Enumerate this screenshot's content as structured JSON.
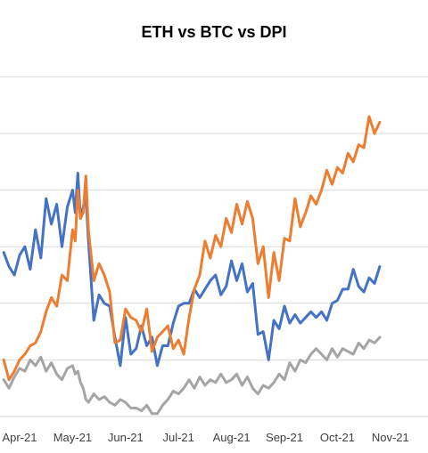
{
  "chart_data": {
    "type": "line",
    "title": "ETH vs BTC vs DPI",
    "xlabel": "",
    "ylabel": "",
    "x_ticks": [
      "Apr-21",
      "May-21",
      "Jun-21",
      "Jul-21",
      "Aug-21",
      "Sep-21",
      "Oct-21",
      "Nov-21"
    ],
    "ylim": [
      0,
      100
    ],
    "grid": true,
    "legend": "none",
    "series": [
      {
        "color": "#4472C4",
        "x": [
          -0.3,
          -0.2,
          -0.1,
          0.0,
          0.1,
          0.2,
          0.3,
          0.4,
          0.5,
          0.6,
          0.7,
          0.8,
          0.9,
          1.0,
          1.05,
          1.1,
          1.15,
          1.2,
          1.25,
          1.3,
          1.4,
          1.5,
          1.6,
          1.7,
          1.8,
          1.9,
          2.0,
          2.1,
          2.2,
          2.3,
          2.4,
          2.5,
          2.6,
          2.7,
          2.8,
          2.9,
          3.0,
          3.1,
          3.2,
          3.3,
          3.4,
          3.5,
          3.6,
          3.7,
          3.8,
          3.9,
          4.0,
          4.1,
          4.2,
          4.3,
          4.4,
          4.5,
          4.6,
          4.7,
          4.8,
          4.9,
          5.0,
          5.1,
          5.2,
          5.3,
          5.4,
          5.5,
          5.6,
          5.7,
          5.8,
          5.9,
          6.0,
          6.1,
          6.2,
          6.3,
          6.4,
          6.5,
          6.6,
          6.7,
          6.8
        ],
        "y": [
          58,
          53,
          50,
          57,
          60,
          52,
          66,
          56,
          77,
          68,
          75,
          60,
          74,
          80,
          72,
          86,
          70,
          74,
          78,
          62,
          34,
          43,
          40,
          39,
          28,
          18,
          35,
          22,
          24,
          32,
          25,
          28,
          18,
          25,
          25,
          33,
          39,
          40,
          40,
          45,
          42,
          45,
          48,
          50,
          43,
          46,
          55,
          48,
          54,
          44,
          47,
          29,
          30,
          20,
          34,
          31,
          39,
          33,
          36,
          33,
          35,
          37,
          35,
          37,
          34,
          40,
          41,
          45,
          45,
          52,
          46,
          44,
          49,
          47,
          53
        ]
      },
      {
        "color": "#ED7D31",
        "x": [
          -0.3,
          -0.2,
          -0.1,
          0.0,
          0.1,
          0.2,
          0.3,
          0.4,
          0.5,
          0.6,
          0.7,
          0.8,
          0.9,
          1.0,
          1.05,
          1.1,
          1.15,
          1.2,
          1.25,
          1.3,
          1.4,
          1.5,
          1.6,
          1.7,
          1.8,
          1.9,
          2.0,
          2.1,
          2.2,
          2.3,
          2.4,
          2.5,
          2.6,
          2.7,
          2.8,
          2.9,
          3.0,
          3.1,
          3.2,
          3.3,
          3.4,
          3.5,
          3.6,
          3.7,
          3.8,
          3.9,
          4.0,
          4.1,
          4.2,
          4.3,
          4.4,
          4.5,
          4.6,
          4.7,
          4.8,
          4.9,
          5.0,
          5.1,
          5.2,
          5.3,
          5.4,
          5.5,
          5.6,
          5.7,
          5.8,
          5.9,
          6.0,
          6.1,
          6.2,
          6.3,
          6.4,
          6.5,
          6.6,
          6.7,
          6.8
        ],
        "y": [
          20,
          13,
          16,
          20,
          22,
          25,
          26,
          30,
          37,
          42,
          39,
          50,
          48,
          66,
          62,
          80,
          70,
          72,
          85,
          66,
          48,
          54,
          50,
          44,
          26,
          27,
          38,
          35,
          34,
          30,
          38,
          23,
          28,
          30,
          32,
          24,
          27,
          22,
          35,
          45,
          50,
          62,
          56,
          64,
          60,
          70,
          65,
          75,
          68,
          76,
          70,
          54,
          60,
          42,
          58,
          48,
          63,
          62,
          77,
          67,
          72,
          78,
          75,
          80,
          87,
          82,
          88,
          86,
          93,
          90,
          96,
          95,
          106,
          100,
          104
        ]
      },
      {
        "color": "#A5A5A5",
        "x": [
          -0.3,
          -0.2,
          -0.1,
          0.0,
          0.1,
          0.2,
          0.3,
          0.4,
          0.5,
          0.6,
          0.7,
          0.8,
          0.9,
          1.0,
          1.05,
          1.1,
          1.15,
          1.2,
          1.25,
          1.3,
          1.4,
          1.5,
          1.6,
          1.7,
          1.8,
          1.9,
          2.0,
          2.1,
          2.2,
          2.3,
          2.4,
          2.5,
          2.6,
          2.7,
          2.8,
          2.9,
          3.0,
          3.1,
          3.2,
          3.3,
          3.4,
          3.5,
          3.6,
          3.7,
          3.8,
          3.9,
          4.0,
          4.1,
          4.2,
          4.3,
          4.4,
          4.5,
          4.6,
          4.7,
          4.8,
          4.9,
          5.0,
          5.1,
          5.2,
          5.3,
          5.4,
          5.5,
          5.6,
          5.7,
          5.8,
          5.9,
          6.0,
          6.1,
          6.2,
          6.3,
          6.4,
          6.5,
          6.6,
          6.7,
          6.8
        ],
        "y": [
          13,
          10,
          14,
          17,
          16,
          20,
          18,
          21,
          16,
          19,
          15,
          13,
          17,
          18,
          15,
          16,
          12,
          10,
          6,
          5,
          8,
          6,
          7,
          5,
          4,
          6,
          5,
          3,
          3,
          2,
          4,
          1,
          1,
          4,
          6,
          9,
          8,
          10,
          13,
          10,
          14,
          11,
          13,
          12,
          15,
          12,
          13,
          15,
          11,
          14,
          10,
          8,
          11,
          10,
          12,
          15,
          13,
          19,
          16,
          20,
          19,
          22,
          24,
          22,
          20,
          24,
          21,
          24,
          23,
          22,
          26,
          24,
          27,
          26,
          28
        ]
      }
    ]
  }
}
